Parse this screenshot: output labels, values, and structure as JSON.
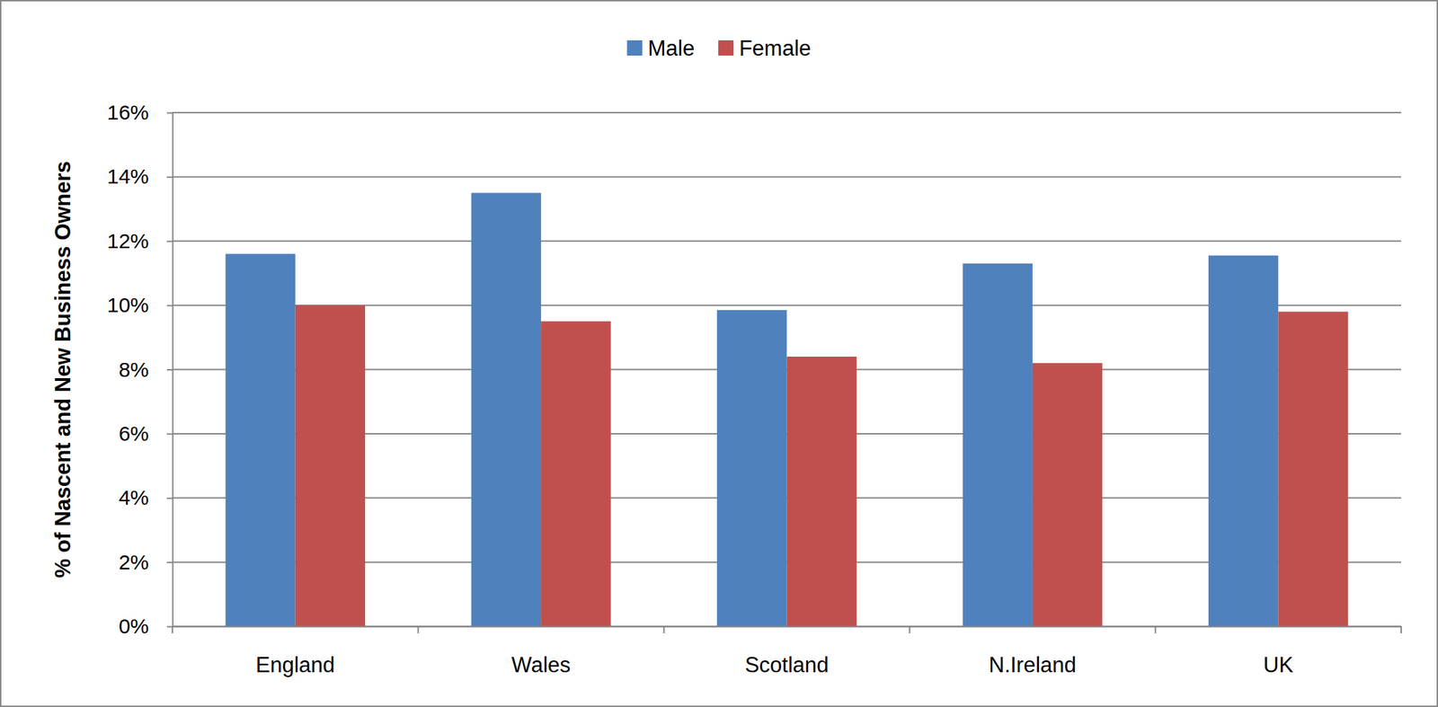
{
  "chart_data": {
    "type": "bar",
    "ylabel": "% of Nascent and New Business Owners",
    "categories": [
      "England",
      "Wales",
      "Scotland",
      "N.Ireland",
      "UK"
    ],
    "series": [
      {
        "name": "Male",
        "color": "#4f81bd",
        "values": [
          11.6,
          13.5,
          9.85,
          11.3,
          11.55
        ]
      },
      {
        "name": "Female",
        "color": "#c0504d",
        "values": [
          10.0,
          9.5,
          8.4,
          8.2,
          9.8
        ]
      }
    ],
    "ylim": [
      0,
      16
    ],
    "yticks": [
      {
        "value": 0,
        "label": "0%"
      },
      {
        "value": 2,
        "label": "2%"
      },
      {
        "value": 4,
        "label": "4%"
      },
      {
        "value": 6,
        "label": "6%"
      },
      {
        "value": 8,
        "label": "8%"
      },
      {
        "value": 10,
        "label": "10%"
      },
      {
        "value": 12,
        "label": "12%"
      },
      {
        "value": 14,
        "label": "14%"
      },
      {
        "value": 16,
        "label": "16%"
      }
    ],
    "grid": true,
    "legend": "top"
  }
}
